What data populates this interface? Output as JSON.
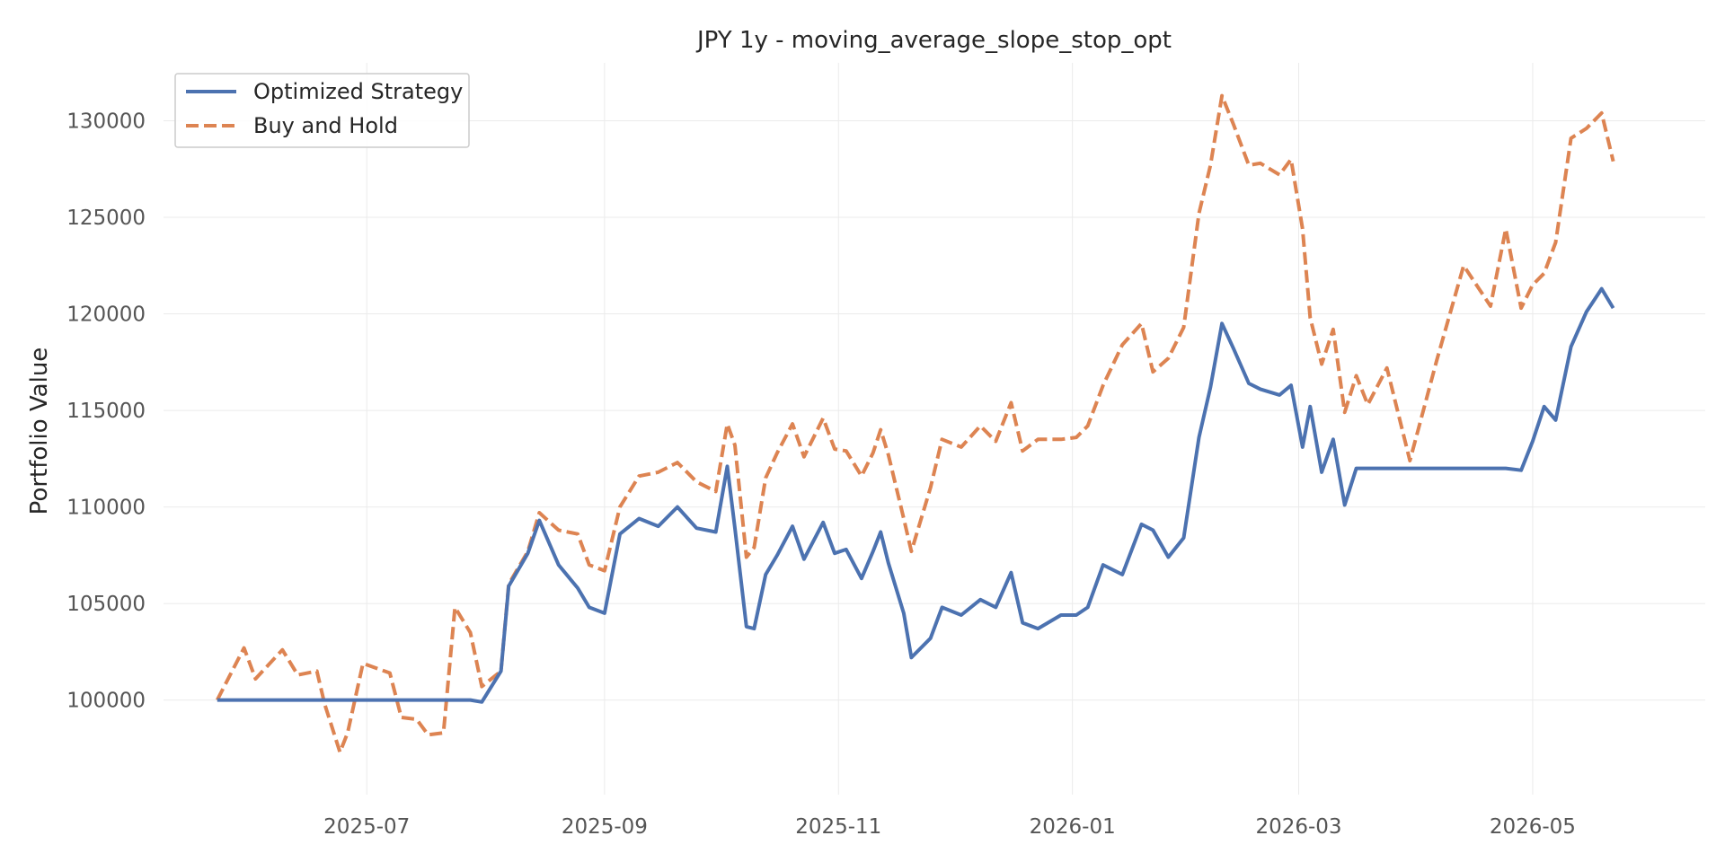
{
  "chart_data": {
    "type": "line",
    "title": "JPY 1y - moving_average_slope_stop_opt",
    "xlabel": "",
    "ylabel": "Portfolio Value",
    "xlim": [
      "2025-05-09",
      "2026-06-15"
    ],
    "ylim": [
      95100,
      133000
    ],
    "grid": true,
    "legend_position": "top-left",
    "x_ticks": [
      "2025-07",
      "2025-09",
      "2025-11",
      "2026-01",
      "2026-03",
      "2026-05"
    ],
    "y_ticks": [
      100000,
      105000,
      110000,
      115000,
      120000,
      125000,
      130000
    ],
    "x": [
      "2025-05-23",
      "2025-05-30",
      "2025-06-02",
      "2025-06-09",
      "2025-06-13",
      "2025-06-18",
      "2025-06-20",
      "2025-06-24",
      "2025-06-26",
      "2025-06-30",
      "2025-07-07",
      "2025-07-10",
      "2025-07-14",
      "2025-07-17",
      "2025-07-21",
      "2025-07-24",
      "2025-07-28",
      "2025-07-31",
      "2025-08-05",
      "2025-08-07",
      "2025-08-12",
      "2025-08-15",
      "2025-08-20",
      "2025-08-25",
      "2025-08-28",
      "2025-09-01",
      "2025-09-05",
      "2025-09-10",
      "2025-09-15",
      "2025-09-20",
      "2025-09-25",
      "2025-09-30",
      "2025-10-03",
      "2025-10-05",
      "2025-10-08",
      "2025-10-10",
      "2025-10-13",
      "2025-10-16",
      "2025-10-20",
      "2025-10-23",
      "2025-10-28",
      "2025-10-31",
      "2025-11-03",
      "2025-11-07",
      "2025-11-10",
      "2025-11-12",
      "2025-11-14",
      "2025-11-18",
      "2025-11-20",
      "2025-11-25",
      "2025-11-28",
      "2025-12-03",
      "2025-12-08",
      "2025-12-12",
      "2025-12-16",
      "2025-12-19",
      "2025-12-23",
      "2025-12-29",
      "2026-01-02",
      "2026-01-05",
      "2026-01-09",
      "2026-01-14",
      "2026-01-19",
      "2026-01-22",
      "2026-01-26",
      "2026-01-30",
      "2026-02-03",
      "2026-02-06",
      "2026-02-09",
      "2026-02-12",
      "2026-02-16",
      "2026-02-19",
      "2026-02-24",
      "2026-02-27",
      "2026-03-02",
      "2026-03-04",
      "2026-03-07",
      "2026-03-10",
      "2026-03-13",
      "2026-03-16",
      "2026-03-19",
      "2026-03-24",
      "2026-03-30",
      "2026-04-06",
      "2026-04-13",
      "2026-04-20",
      "2026-04-24",
      "2026-04-28",
      "2026-05-01",
      "2026-05-04",
      "2026-05-07",
      "2026-05-11",
      "2026-05-15",
      "2026-05-19",
      "2026-05-22"
    ],
    "series": [
      {
        "name": "Optimized Strategy",
        "color": "#4c72b0",
        "line_style": "solid",
        "values": [
          100000,
          100000,
          100000,
          100000,
          100000,
          100000,
          100000,
          100000,
          100000,
          100000,
          100000,
          100000,
          100000,
          100000,
          100000,
          100000,
          100000,
          99900,
          101500,
          105900,
          107600,
          109300,
          107000,
          105800,
          104800,
          104500,
          108600,
          109400,
          109000,
          110000,
          108900,
          108700,
          112100,
          108900,
          103800,
          103700,
          106500,
          107500,
          109000,
          107300,
          109200,
          107600,
          107800,
          106300,
          107700,
          108700,
          107100,
          104500,
          102200,
          103200,
          104800,
          104400,
          105200,
          104800,
          106600,
          104000,
          103700,
          104400,
          104400,
          104800,
          107000,
          106500,
          109100,
          108800,
          107400,
          108400,
          113600,
          116200,
          119500,
          118200,
          116400,
          116100,
          115800,
          116300,
          113100,
          115200,
          111800,
          113500,
          110100,
          112000,
          112000,
          112000,
          112000,
          112000,
          112000,
          112000,
          112000,
          111900,
          113400,
          115200,
          114500,
          118300,
          120100,
          121300,
          120300
        ]
      },
      {
        "name": "Buy and Hold",
        "color": "#dd8452",
        "line_style": "dashed",
        "values": [
          100000,
          102700,
          101100,
          102600,
          101300,
          101500,
          99800,
          97300,
          98300,
          101900,
          101400,
          99100,
          99000,
          98200,
          98300,
          104800,
          103500,
          100700,
          101500,
          106000,
          107700,
          109700,
          108800,
          108600,
          107000,
          106700,
          110000,
          111600,
          111800,
          112300,
          111300,
          110800,
          114300,
          113200,
          107400,
          107900,
          111500,
          112800,
          114300,
          112600,
          114600,
          113000,
          112900,
          111600,
          112800,
          114000,
          112700,
          109400,
          107700,
          111000,
          113500,
          113100,
          114200,
          113400,
          115400,
          112900,
          113500,
          113500,
          113600,
          114200,
          116300,
          118400,
          119500,
          117000,
          117700,
          119300,
          125200,
          127700,
          131300,
          129800,
          127700,
          127800,
          127200,
          128000,
          124400,
          119800,
          117400,
          119200,
          114900,
          116800,
          115300,
          117200,
          112400,
          117600,
          122500,
          120400,
          124400,
          120300,
          121500,
          122100,
          123700,
          129100,
          129600,
          130400,
          127900
        ]
      }
    ]
  }
}
